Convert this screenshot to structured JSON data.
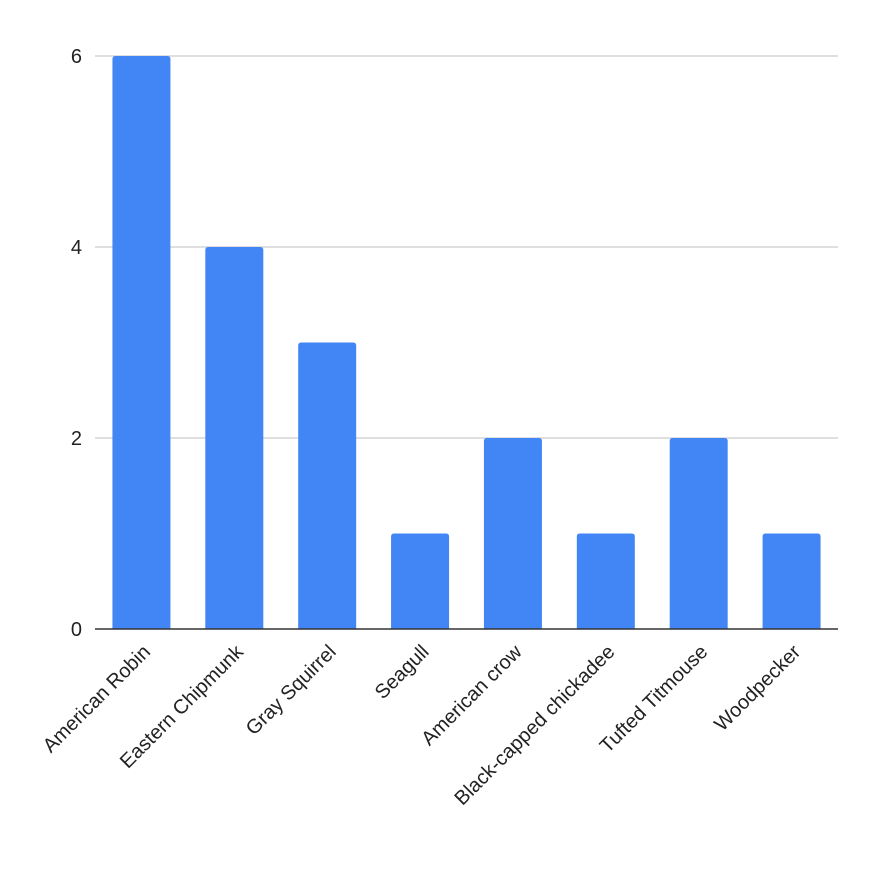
{
  "chart_data": {
    "type": "bar",
    "title": "",
    "xlabel": "",
    "ylabel": "",
    "categories": [
      "American Robin",
      "Eastern Chipmunk",
      "Gray Squirrel",
      "Seagull",
      "American crow",
      "Black-capped chickadee",
      "Tufted Titmouse",
      "Woodpecker"
    ],
    "values": [
      6,
      4,
      3,
      1,
      2,
      1,
      2,
      1
    ],
    "ylim": [
      0,
      6
    ],
    "yticks": [
      0,
      2,
      4,
      6
    ],
    "grid": true,
    "legend": "none",
    "colors": {
      "bar": "#4285f4",
      "grid": "#cccccc",
      "axis": "#333333",
      "text": "#222222"
    }
  }
}
